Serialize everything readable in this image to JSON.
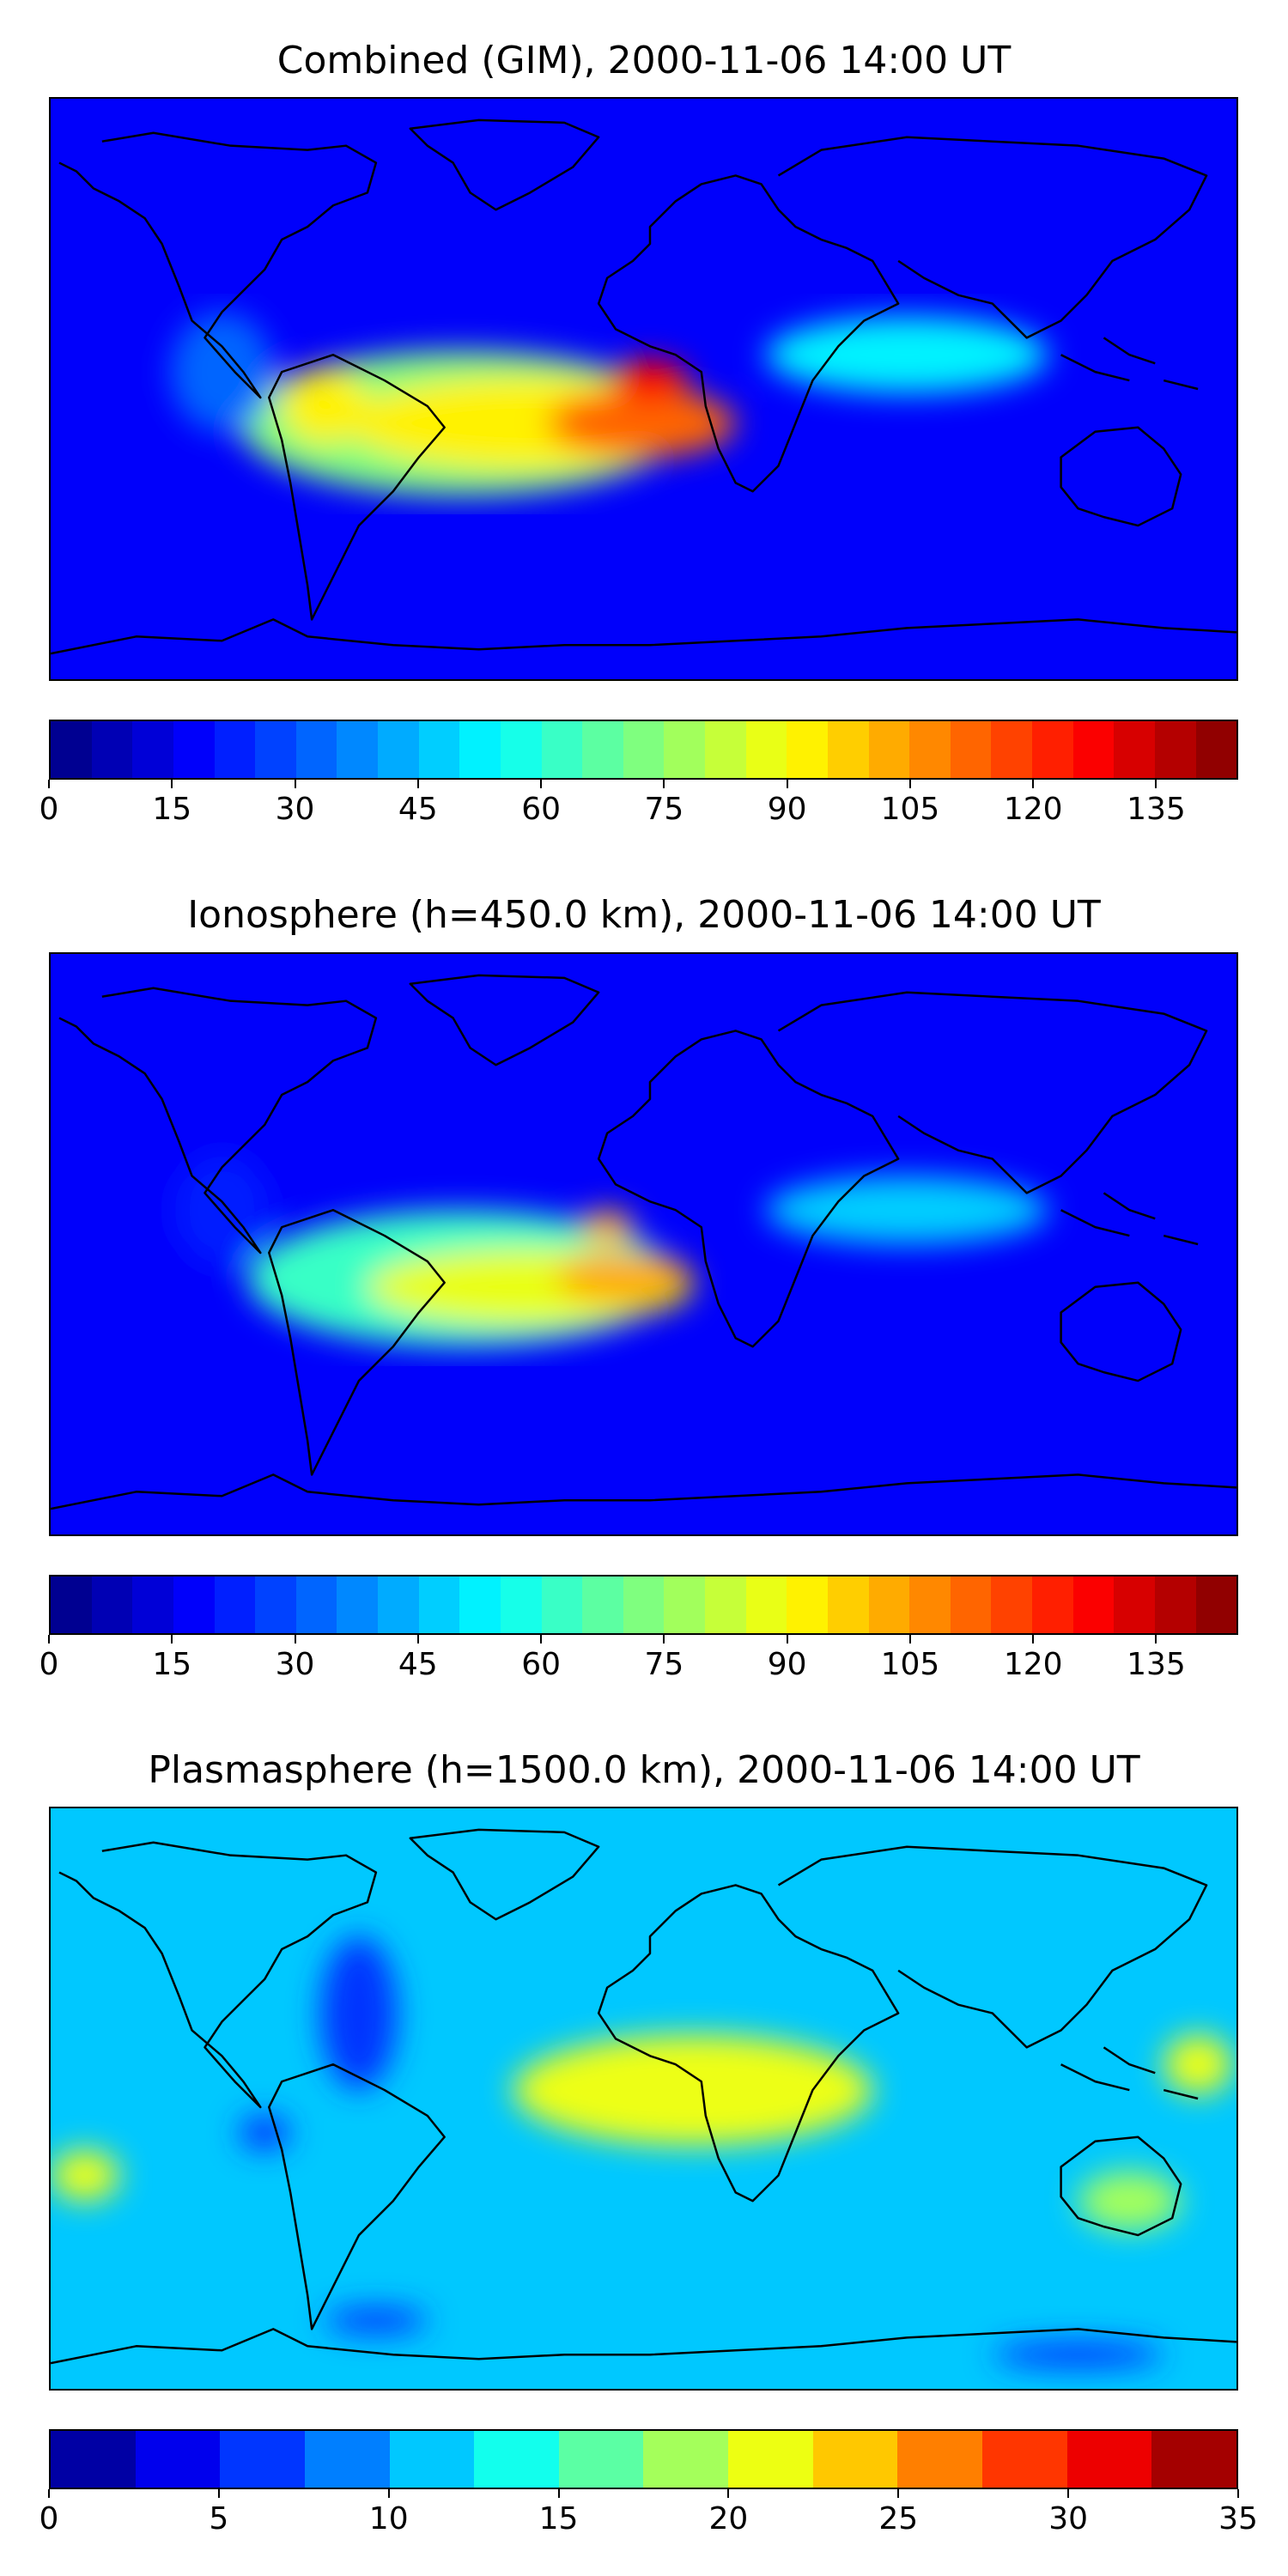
{
  "panels": [
    {
      "title": "Combined (GIM), 2000-11-06 14:00 UT",
      "colorbar": {
        "min": 0,
        "max": 145,
        "step": 5,
        "tick_labels": [
          "0",
          "15",
          "30",
          "45",
          "60",
          "75",
          "90",
          "105",
          "120",
          "135"
        ],
        "tick_values": [
          0,
          15,
          30,
          45,
          60,
          75,
          90,
          105,
          120,
          135
        ]
      },
      "field_levels": {
        "background": 15,
        "regions": [
          {
            "name": "south-america-africa-belt",
            "value": 70
          },
          {
            "name": "south-america-africa-core",
            "value": 90
          },
          {
            "name": "africa-peak",
            "value": 110
          },
          {
            "name": "africa-max",
            "value": 125
          },
          {
            "name": "asia-tongue",
            "value": 50
          },
          {
            "name": "pacific-low",
            "value": 30
          }
        ]
      }
    },
    {
      "title": "Ionosphere  (h=450.0 km), 2000-11-06 14:00 UT",
      "colorbar": {
        "min": 0,
        "max": 145,
        "step": 5,
        "tick_labels": [
          "0",
          "15",
          "30",
          "45",
          "60",
          "75",
          "90",
          "105",
          "120",
          "135"
        ],
        "tick_values": [
          0,
          15,
          30,
          45,
          60,
          75,
          90,
          105,
          120,
          135
        ]
      },
      "field_levels": {
        "background": 15,
        "regions": [
          {
            "name": "south-america-africa-belt",
            "value": 60
          },
          {
            "name": "south-america-africa-core",
            "value": 85
          },
          {
            "name": "africa-peak",
            "value": 100
          },
          {
            "name": "asia-tongue",
            "value": 45
          },
          {
            "name": "pacific-low",
            "value": 20
          }
        ]
      }
    },
    {
      "title": "Plasmasphere (h=1500.0 km), 2000-11-06 14:00 UT",
      "colorbar": {
        "min": 0,
        "max": 35,
        "step": 2.5,
        "tick_labels": [
          "0",
          "5",
          "10",
          "15",
          "20",
          "25",
          "30",
          "35"
        ],
        "tick_values": [
          0,
          5,
          10,
          15,
          20,
          25,
          30,
          35
        ]
      },
      "field_levels": {
        "background": 10,
        "regions": [
          {
            "name": "arabia-india-peak",
            "value": 25
          },
          {
            "name": "north-africa-asia",
            "value": 20
          },
          {
            "name": "pacific-west-high",
            "value": 20
          },
          {
            "name": "australia-high",
            "value": 18
          },
          {
            "name": "americas-low",
            "value": 5
          },
          {
            "name": "southern-ocean-low",
            "value": 5
          }
        ]
      }
    }
  ],
  "colormap": {
    "name": "jet",
    "stops": [
      "#00007f",
      "#0000ff",
      "#007fff",
      "#00ffff",
      "#7fff7f",
      "#ffff00",
      "#ff7f00",
      "#ff0000",
      "#7f0000"
    ]
  }
}
